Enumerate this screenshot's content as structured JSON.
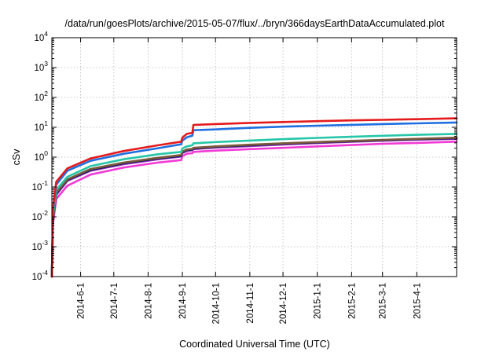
{
  "chart_data": {
    "type": "line",
    "title": "/data/run/goesPlots/archive/2015-05-07/flux/../bryn/366daysEarthDataAccumulated.plot",
    "xlabel": "Coordinated Universal Time (UTC)",
    "ylabel": "cSv",
    "x_scale": "time",
    "y_scale": "log",
    "xlim": [
      "2014-05-06",
      "2015-05-07"
    ],
    "ylim": [
      0.0001,
      10000
    ],
    "grid": true,
    "legend": "none",
    "x_ticks": [
      "2014-6-1",
      "2014-7-1",
      "2014-8-1",
      "2014-9-1",
      "2014-10-1",
      "2014-11-1",
      "2014-12-1",
      "2015-1-1",
      "2015-2-1",
      "2015-3-1",
      "2015-4-1"
    ],
    "y_ticks": [
      {
        "base": "10",
        "exp": "-4",
        "value": 0.0001
      },
      {
        "base": "10",
        "exp": "-3",
        "value": 0.001
      },
      {
        "base": "10",
        "exp": "-2",
        "value": 0.01
      },
      {
        "base": "10",
        "exp": "-1",
        "value": 0.1
      },
      {
        "base": "10",
        "exp": "0",
        "value": 1
      },
      {
        "base": "10",
        "exp": "1",
        "value": 10
      },
      {
        "base": "10",
        "exp": "2",
        "value": 100
      },
      {
        "base": "10",
        "exp": "3",
        "value": 1000
      },
      {
        "base": "10",
        "exp": "4",
        "value": 10000
      }
    ],
    "series": [
      {
        "color": "#e41a1c",
        "x": [
          "2014-05-06",
          "2014-05-07",
          "2014-05-10",
          "2014-05-20",
          "2014-06-10",
          "2014-07-10",
          "2014-08-10",
          "2014-08-31",
          "2014-09-01",
          "2014-09-05",
          "2014-09-10",
          "2014-09-11",
          "2014-10-01",
          "2014-11-01",
          "2014-12-01",
          "2015-01-01",
          "2015-02-01",
          "2015-03-01",
          "2015-04-01",
          "2015-05-07"
        ],
        "values": [
          0.0001,
          0.02,
          0.15,
          0.42,
          0.9,
          1.6,
          2.5,
          3.3,
          4.5,
          6.0,
          6.5,
          12.0,
          12.8,
          14.0,
          15.0,
          16.0,
          17.0,
          17.8,
          18.7,
          20.0
        ]
      },
      {
        "color": "#1f6fe0",
        "x": [
          "2014-05-06",
          "2014-05-07",
          "2014-05-10",
          "2014-05-20",
          "2014-06-10",
          "2014-07-10",
          "2014-08-10",
          "2014-08-31",
          "2014-09-01",
          "2014-09-05",
          "2014-09-10",
          "2014-09-11",
          "2014-10-01",
          "2014-11-01",
          "2014-12-01",
          "2015-01-01",
          "2015-02-01",
          "2015-03-01",
          "2015-04-01",
          "2015-05-07"
        ],
        "values": [
          0.0001,
          0.016,
          0.12,
          0.35,
          0.75,
          1.3,
          2.0,
          2.7,
          3.6,
          4.6,
          5.2,
          8.0,
          8.5,
          9.6,
          10.5,
          11.3,
          12.1,
          12.8,
          13.5,
          14.5
        ]
      },
      {
        "color": "#26c6a8",
        "x": [
          "2014-05-06",
          "2014-05-07",
          "2014-05-10",
          "2014-05-20",
          "2014-06-10",
          "2014-07-10",
          "2014-08-10",
          "2014-08-31",
          "2014-09-01",
          "2014-09-05",
          "2014-09-10",
          "2014-09-11",
          "2014-10-01",
          "2014-11-01",
          "2014-12-01",
          "2015-01-01",
          "2015-02-01",
          "2015-03-01",
          "2015-04-01",
          "2015-05-07"
        ],
        "values": [
          0.0001,
          0.012,
          0.08,
          0.22,
          0.5,
          0.85,
          1.25,
          1.5,
          1.95,
          2.3,
          2.5,
          2.9,
          3.2,
          3.6,
          4.0,
          4.4,
          4.8,
          5.2,
          5.6,
          6.0
        ]
      },
      {
        "color": "#7a5a3a",
        "x": [
          "2014-05-06",
          "2014-05-07",
          "2014-05-10",
          "2014-05-20",
          "2014-06-10",
          "2014-07-10",
          "2014-08-10",
          "2014-08-31",
          "2014-09-01",
          "2014-09-05",
          "2014-09-10",
          "2014-09-11",
          "2014-10-01",
          "2014-11-01",
          "2014-12-01",
          "2015-01-01",
          "2015-02-01",
          "2015-03-01",
          "2015-04-01",
          "2015-05-07"
        ],
        "values": [
          0.0001,
          0.009,
          0.065,
          0.18,
          0.4,
          0.66,
          0.95,
          1.18,
          1.55,
          1.8,
          1.9,
          2.05,
          2.3,
          2.6,
          2.9,
          3.2,
          3.5,
          3.8,
          4.1,
          4.5
        ]
      },
      {
        "color": "#1a1a60",
        "x": [
          "2014-05-06",
          "2014-05-07",
          "2014-05-10",
          "2014-05-20",
          "2014-06-10",
          "2014-07-10",
          "2014-08-10",
          "2014-08-31",
          "2014-09-01",
          "2014-09-05",
          "2014-09-10",
          "2014-09-11",
          "2014-10-01",
          "2014-11-01",
          "2014-12-01",
          "2015-01-01",
          "2015-02-01",
          "2015-03-01",
          "2015-04-01",
          "2015-05-07"
        ],
        "values": [
          0.0001,
          0.0085,
          0.06,
          0.17,
          0.37,
          0.62,
          0.9,
          1.1,
          1.45,
          1.7,
          1.8,
          1.95,
          2.2,
          2.5,
          2.8,
          3.1,
          3.4,
          3.7,
          4.0,
          4.3
        ]
      },
      {
        "color": "#9b30c8",
        "x": [
          "2014-05-06",
          "2014-05-07",
          "2014-05-10",
          "2014-05-20",
          "2014-06-10",
          "2014-07-10",
          "2014-08-10",
          "2014-08-31",
          "2014-09-01",
          "2014-09-05",
          "2014-09-10",
          "2014-09-11",
          "2014-10-01",
          "2014-11-01",
          "2014-12-01",
          "2015-01-01",
          "2015-02-01",
          "2015-03-01",
          "2015-04-01",
          "2015-05-07"
        ],
        "values": [
          0.0001,
          0.008,
          0.055,
          0.16,
          0.35,
          0.58,
          0.85,
          1.05,
          1.38,
          1.6,
          1.7,
          1.85,
          2.1,
          2.35,
          2.65,
          2.95,
          3.25,
          3.55,
          3.85,
          4.1
        ]
      },
      {
        "color": "#f23ad4",
        "x": [
          "2014-05-06",
          "2014-05-07",
          "2014-05-10",
          "2014-05-20",
          "2014-06-10",
          "2014-07-10",
          "2014-08-10",
          "2014-08-31",
          "2014-09-01",
          "2014-09-05",
          "2014-09-10",
          "2014-09-11",
          "2014-10-01",
          "2014-11-01",
          "2014-12-01",
          "2015-01-01",
          "2015-02-01",
          "2015-03-01",
          "2015-04-01",
          "2015-05-07"
        ],
        "values": [
          0.0001,
          0.006,
          0.04,
          0.11,
          0.26,
          0.45,
          0.66,
          0.8,
          1.08,
          1.3,
          1.35,
          1.5,
          1.65,
          1.85,
          2.05,
          2.3,
          2.55,
          2.8,
          3.0,
          3.3
        ]
      }
    ]
  }
}
